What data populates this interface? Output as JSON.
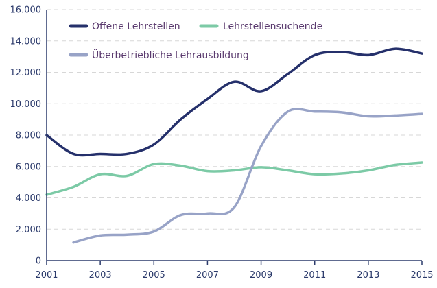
{
  "chart_data": {
    "type": "line",
    "x": [
      2001,
      2002,
      2003,
      2004,
      2005,
      2006,
      2007,
      2008,
      2009,
      2010,
      2011,
      2012,
      2013,
      2014,
      2015
    ],
    "x_tick_labels": [
      "2001",
      "2003",
      "2005",
      "2007",
      "2009",
      "2011",
      "2013",
      "2015"
    ],
    "x_tick_values": [
      2001,
      2003,
      2005,
      2007,
      2009,
      2011,
      2013,
      2015
    ],
    "y_tick_labels": [
      "0",
      "2.000",
      "4.000",
      "6.000",
      "8.000",
      "10.000",
      "12.000",
      "14.000",
      "16.000"
    ],
    "y_tick_values": [
      0,
      2000,
      4000,
      6000,
      8000,
      10000,
      12000,
      14000,
      16000
    ],
    "xlim": [
      2001,
      2015
    ],
    "ylim": [
      0,
      16000
    ],
    "grid": true,
    "legend_position": "top-left",
    "series": [
      {
        "name": "Offene Lehrstellen",
        "color": "#25306b",
        "values": [
          8000,
          6800,
          6800,
          6800,
          7400,
          9000,
          10300,
          11400,
          10800,
          11900,
          13100,
          13300,
          13100,
          13500,
          13200
        ]
      },
      {
        "name": "Lehrstellensuchende",
        "color": "#7ccaa6",
        "values": [
          4200,
          4700,
          5500,
          5400,
          6150,
          6050,
          5700,
          5750,
          5950,
          5750,
          5500,
          5550,
          5750,
          6100,
          6250
        ]
      },
      {
        "name": "Überbetriebliche Lehrausbildung",
        "color": "#98a3c7",
        "values": [
          null,
          1150,
          1600,
          1650,
          1850,
          2900,
          3000,
          3400,
          7300,
          9500,
          9500,
          9450,
          9200,
          9250,
          9350
        ]
      }
    ]
  }
}
